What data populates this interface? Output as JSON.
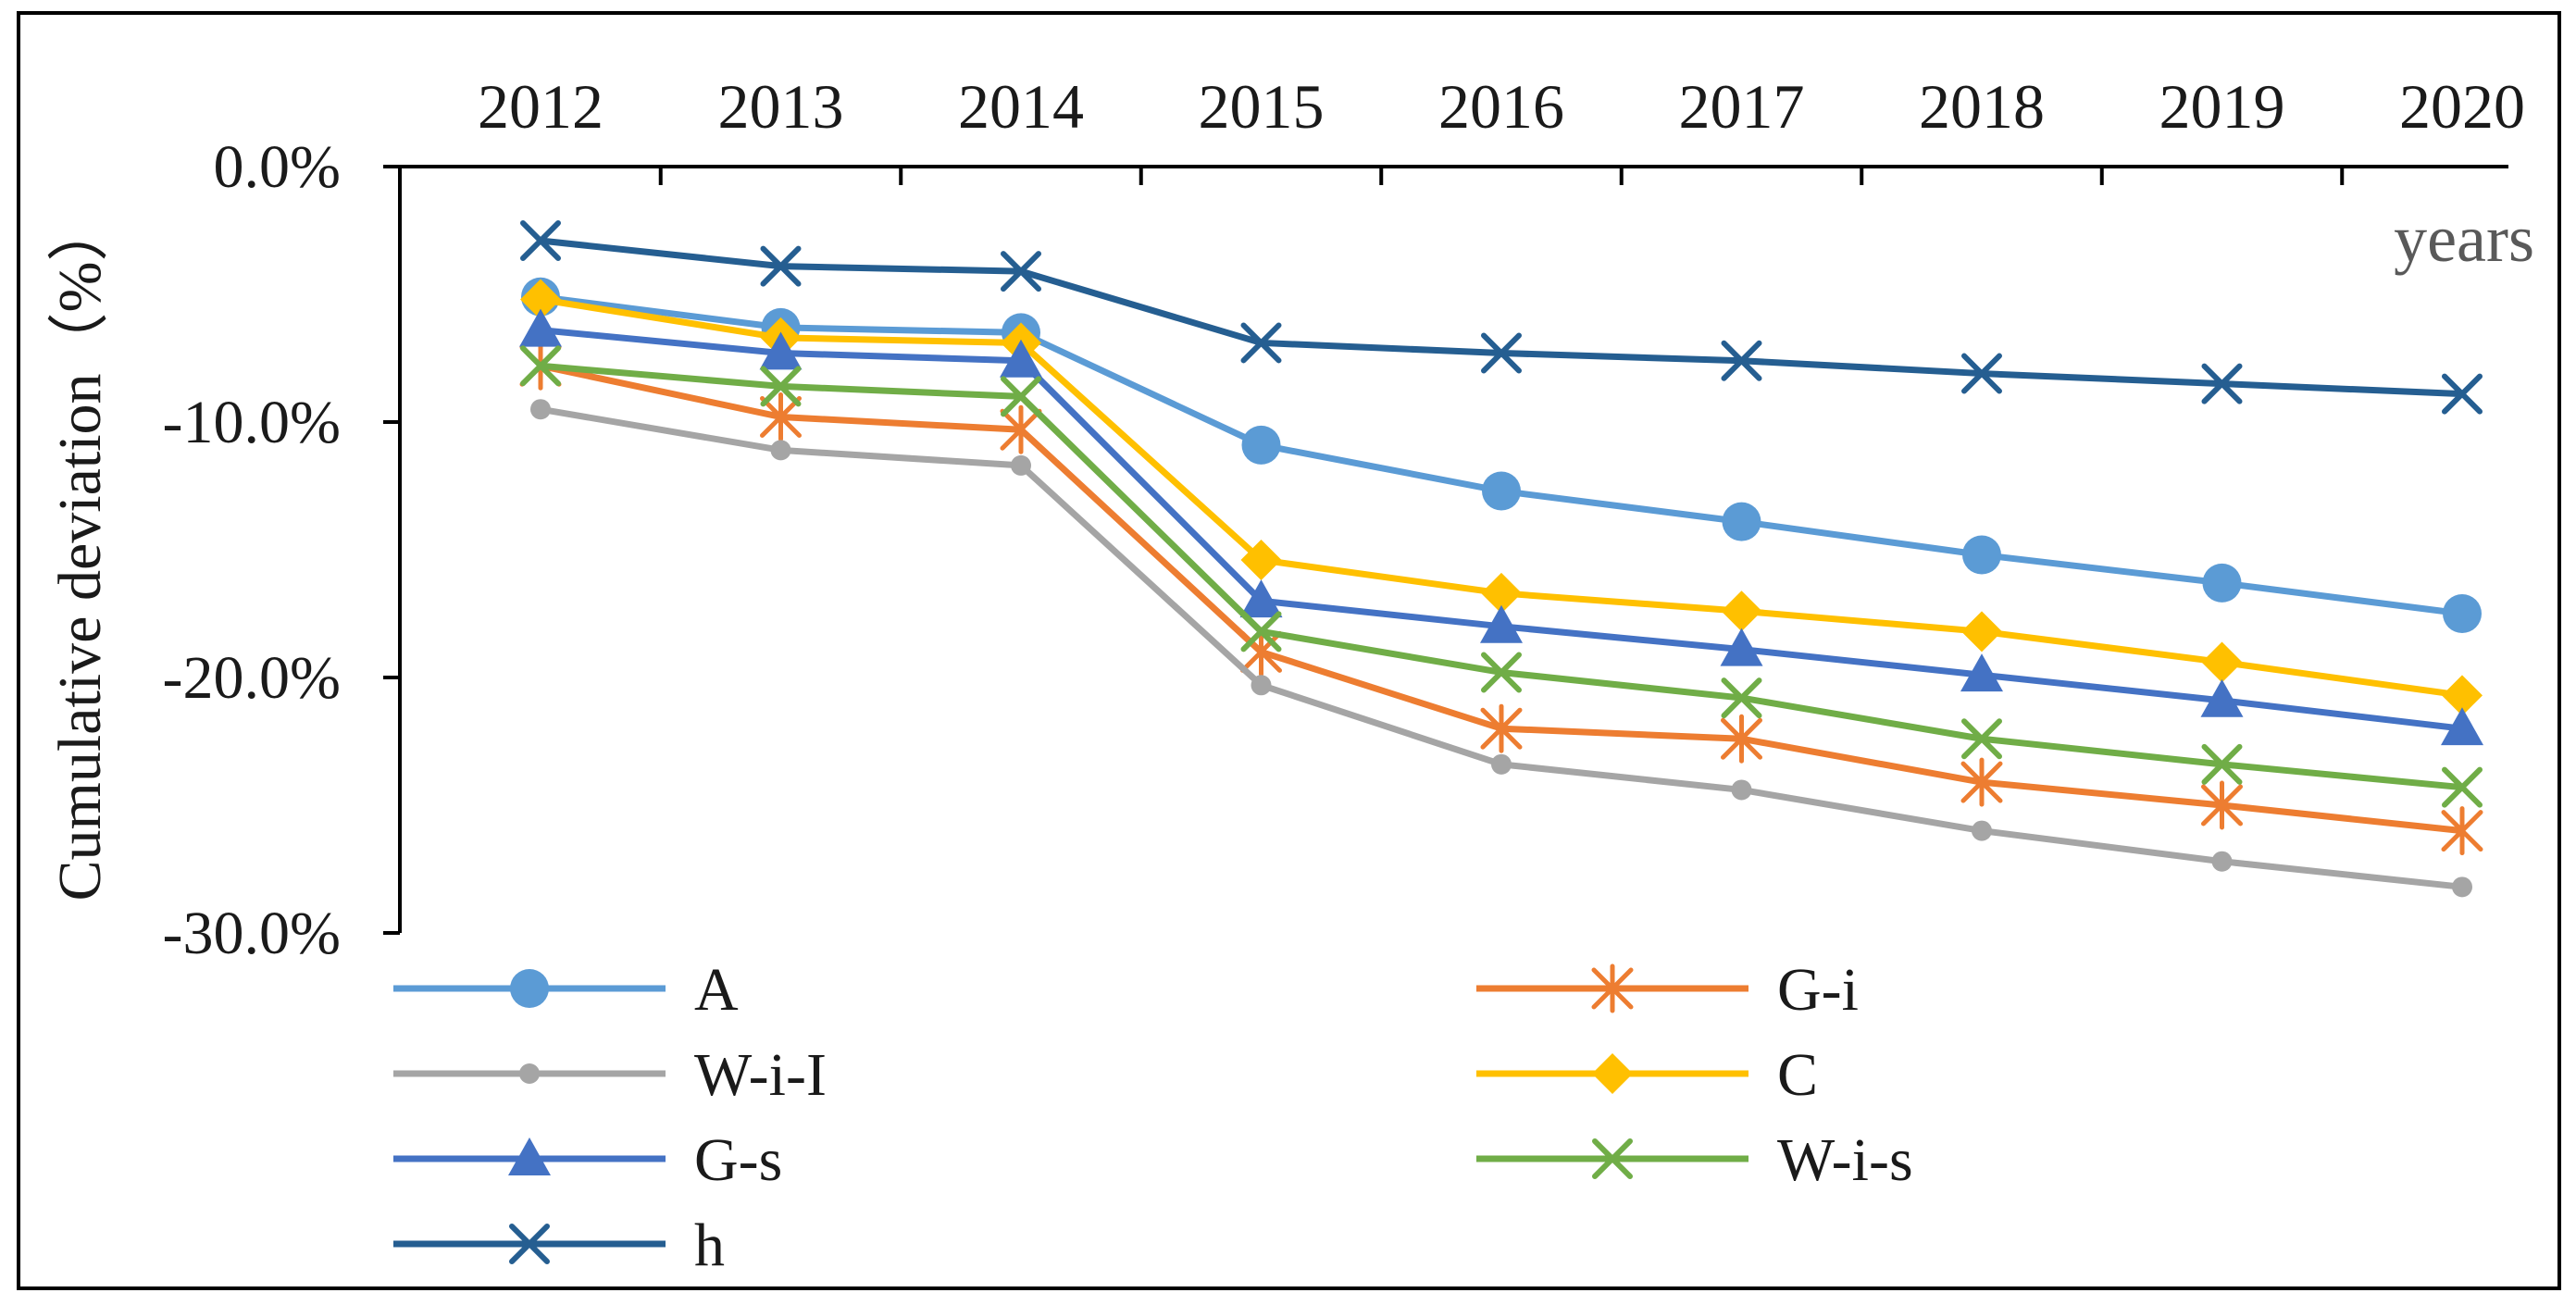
{
  "chart_data": {
    "type": "line",
    "title": "",
    "xlabel": "years",
    "ylabel": "Cumulative deviation（%）",
    "x": [
      "2012",
      "2013",
      "2014",
      "2015",
      "2016",
      "2017",
      "2018",
      "2019",
      "2020"
    ],
    "ylim": [
      -30,
      0
    ],
    "yticks": [
      "0.0%",
      "-10.0%",
      "-20.0%",
      "-30.0%"
    ],
    "ytick_values": [
      0,
      -10,
      -20,
      -30
    ],
    "grid": false,
    "x_axis_position": "top",
    "legend_placement": "bottom",
    "series": [
      {
        "name": "A",
        "color": "#5B9BD5",
        "marker": "circle",
        "values": [
          -5.1,
          -6.3,
          -6.5,
          -10.9,
          -12.7,
          -13.9,
          -15.2,
          -16.3,
          -17.5
        ]
      },
      {
        "name": "G-i",
        "color": "#ED7D31",
        "marker": "asterisk",
        "values": [
          -7.8,
          -9.8,
          -10.3,
          -19.0,
          -22.0,
          -22.4,
          -24.1,
          -25.0,
          -26.0
        ]
      },
      {
        "name": "W-i-I",
        "color": "#A5A5A5",
        "marker": "dot",
        "values": [
          -9.5,
          -11.1,
          -11.7,
          -20.3,
          -23.4,
          -24.4,
          -26.0,
          -27.2,
          -28.2
        ]
      },
      {
        "name": "C",
        "color": "#FFC000",
        "marker": "diamond",
        "values": [
          -5.2,
          -6.7,
          -6.9,
          -15.4,
          -16.7,
          -17.4,
          -18.2,
          -19.4,
          -20.7
        ]
      },
      {
        "name": "G-s",
        "color": "#4472C4",
        "marker": "triangle",
        "values": [
          -6.4,
          -7.3,
          -7.6,
          -17.0,
          -18.0,
          -18.9,
          -19.9,
          -20.9,
          -22.0
        ]
      },
      {
        "name": "W-i-s",
        "color": "#70AD47",
        "marker": "x",
        "values": [
          -7.8,
          -8.6,
          -9.0,
          -18.2,
          -19.8,
          -20.8,
          -22.4,
          -23.4,
          -24.3
        ]
      },
      {
        "name": "h",
        "color": "#255E91",
        "marker": "x",
        "values": [
          -2.9,
          -3.9,
          -4.1,
          -6.9,
          -7.3,
          -7.6,
          -8.1,
          -8.5,
          -8.9
        ]
      }
    ]
  }
}
